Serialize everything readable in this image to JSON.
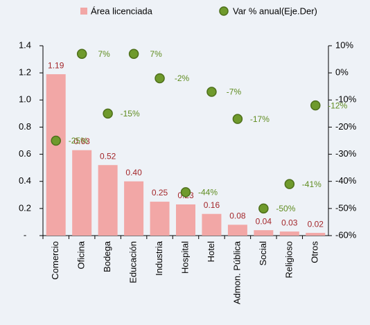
{
  "chart_data": {
    "type": "bar",
    "categories": [
      "Comercio",
      "Oficina",
      "Bodega",
      "Educación",
      "Industria",
      "Hospital",
      "Hotel",
      "Admon. Pública",
      "Social",
      "Religioso",
      "Otros"
    ],
    "series": [
      {
        "name": "Área licenciada",
        "type": "bar",
        "color": "#f2a7a6",
        "label_color": "#a3262a",
        "values": [
          1.19,
          0.63,
          0.52,
          0.4,
          0.25,
          0.23,
          0.16,
          0.08,
          0.04,
          0.03,
          0.02
        ],
        "value_labels": [
          "1.19",
          "0.63",
          "0.52",
          "0.40",
          "0.25",
          "0.23",
          "0.16",
          "0.08",
          "0.04",
          "0.03",
          "0.02"
        ]
      },
      {
        "name": "Var % anual(Eje.Der)",
        "type": "scatter",
        "axis": "y2",
        "color": "#6f9a2c",
        "label_color": "#5f8c1f",
        "values": [
          -25,
          7,
          -15,
          7,
          -2,
          -44,
          -7,
          -17,
          -50,
          -41,
          -12
        ],
        "value_labels": [
          "-25%",
          "7%",
          "-15%",
          "7%",
          "-2%",
          "-44%",
          "-7%",
          "-17%",
          "-50%",
          "-41%",
          "-12%"
        ]
      }
    ],
    "ylim": [
      0,
      1.4
    ],
    "yticks": [
      {
        "value": 0,
        "label": "-"
      },
      0.2,
      0.4,
      0.6,
      0.8,
      {
        "value": 1,
        "label": "1.0"
      },
      1.2,
      1.4
    ],
    "y2lim": [
      -60,
      10
    ],
    "y2ticks": [
      {
        "value": -60,
        "label": "-60%"
      },
      {
        "value": -50,
        "label": "-50%"
      },
      {
        "value": -40,
        "label": "-40%"
      },
      {
        "value": -30,
        "label": "-30%"
      },
      {
        "value": -20,
        "label": "-20%"
      },
      {
        "value": -10,
        "label": "-10%"
      },
      {
        "value": 0,
        "label": "0%"
      },
      {
        "value": 10,
        "label": "10%"
      }
    ],
    "legend": "top",
    "grid": false
  }
}
